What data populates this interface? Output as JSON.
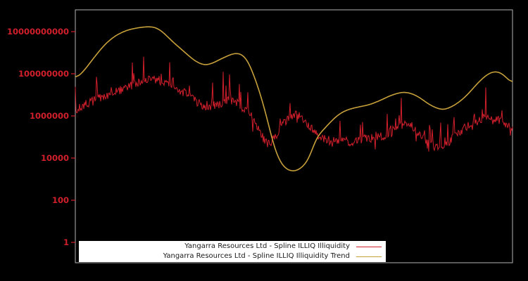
{
  "figure": {
    "background": "#000000",
    "plot_border_color": "#b3b3b3"
  },
  "chart_data": {
    "type": "line",
    "title": "",
    "xlabel": "",
    "ylabel": "",
    "grid": false,
    "x_axis": {
      "tick_labels": []
    },
    "y_axis": {
      "scale": "log",
      "tick_color": "#d11f2c",
      "range_log10": [
        -1,
        11
      ],
      "ticks": [
        {
          "label": "10000000000",
          "value": 10000000000
        },
        {
          "label": "100000000",
          "value": 100000000
        },
        {
          "label": "1000000",
          "value": 1000000
        },
        {
          "label": "10000",
          "value": 10000
        },
        {
          "label": "100",
          "value": 100
        },
        {
          "label": "1",
          "value": 1
        }
      ]
    },
    "legend": {
      "location": "lower-left-inside",
      "background": "#ffffff",
      "text_color": "#1a1a1a"
    },
    "series": [
      {
        "name": "Yangarra Resources Ltd - Spline ILLIQ Illiquidity",
        "color": "#d11f2c",
        "style": "noisy-line",
        "line_width": 1,
        "noise": {
          "seed": 7,
          "jitter": 0.21,
          "spike_prob": 0.1,
          "spike_max": 1.3,
          "dip_prob": 0.05,
          "dip_max": 0.5
        },
        "points_xfrac_log10": [
          [
            0.0,
            6.17
          ],
          [
            0.016,
            6.5
          ],
          [
            0.032,
            6.63
          ],
          [
            0.048,
            6.77
          ],
          [
            0.064,
            6.87
          ],
          [
            0.081,
            7.0
          ],
          [
            0.097,
            7.17
          ],
          [
            0.113,
            7.3
          ],
          [
            0.129,
            7.47
          ],
          [
            0.145,
            7.6
          ],
          [
            0.161,
            7.77
          ],
          [
            0.177,
            7.77
          ],
          [
            0.193,
            7.67
          ],
          [
            0.209,
            7.57
          ],
          [
            0.225,
            7.37
          ],
          [
            0.242,
            7.2
          ],
          [
            0.258,
            6.97
          ],
          [
            0.274,
            6.7
          ],
          [
            0.29,
            6.5
          ],
          [
            0.306,
            6.43
          ],
          [
            0.322,
            6.5
          ],
          [
            0.338,
            6.63
          ],
          [
            0.354,
            6.73
          ],
          [
            0.37,
            6.6
          ],
          [
            0.386,
            6.33
          ],
          [
            0.403,
            5.97
          ],
          [
            0.419,
            5.43
          ],
          [
            0.432,
            4.83
          ],
          [
            0.443,
            4.6
          ],
          [
            0.456,
            4.97
          ],
          [
            0.472,
            5.57
          ],
          [
            0.488,
            5.9
          ],
          [
            0.504,
            6.07
          ],
          [
            0.52,
            5.9
          ],
          [
            0.536,
            5.53
          ],
          [
            0.552,
            5.13
          ],
          [
            0.568,
            4.9
          ],
          [
            0.588,
            4.8
          ],
          [
            0.609,
            4.87
          ],
          [
            0.628,
            4.77
          ],
          [
            0.649,
            4.83
          ],
          [
            0.668,
            4.93
          ],
          [
            0.689,
            5.0
          ],
          [
            0.71,
            5.1
          ],
          [
            0.726,
            5.3
          ],
          [
            0.746,
            5.53
          ],
          [
            0.762,
            5.6
          ],
          [
            0.778,
            5.37
          ],
          [
            0.794,
            4.97
          ],
          [
            0.81,
            4.73
          ],
          [
            0.826,
            4.57
          ],
          [
            0.842,
            4.6
          ],
          [
            0.858,
            4.83
          ],
          [
            0.874,
            5.1
          ],
          [
            0.89,
            5.47
          ],
          [
            0.907,
            5.63
          ],
          [
            0.923,
            5.8
          ],
          [
            0.939,
            5.9
          ],
          [
            0.955,
            5.77
          ],
          [
            0.971,
            5.8
          ],
          [
            0.985,
            5.6
          ],
          [
            1.0,
            5.3
          ]
        ]
      },
      {
        "name": "Yangarra Resources Ltd - Spline ILLIQ Illiquidity Trend",
        "color": "#c6a03a",
        "style": "smooth-line",
        "line_width": 1.6,
        "points_xfrac_log10": [
          [
            0.0,
            7.73
          ],
          [
            0.021,
            8.17
          ],
          [
            0.045,
            8.83
          ],
          [
            0.069,
            9.43
          ],
          [
            0.093,
            9.83
          ],
          [
            0.118,
            10.07
          ],
          [
            0.142,
            10.18
          ],
          [
            0.166,
            10.24
          ],
          [
            0.185,
            10.2
          ],
          [
            0.201,
            9.97
          ],
          [
            0.217,
            9.63
          ],
          [
            0.233,
            9.33
          ],
          [
            0.25,
            9.03
          ],
          [
            0.266,
            8.73
          ],
          [
            0.282,
            8.5
          ],
          [
            0.298,
            8.4
          ],
          [
            0.314,
            8.5
          ],
          [
            0.33,
            8.67
          ],
          [
            0.346,
            8.83
          ],
          [
            0.362,
            8.97
          ],
          [
            0.378,
            8.97
          ],
          [
            0.394,
            8.67
          ],
          [
            0.407,
            8.0
          ],
          [
            0.423,
            7.07
          ],
          [
            0.44,
            5.77
          ],
          [
            0.456,
            4.4
          ],
          [
            0.472,
            3.67
          ],
          [
            0.488,
            3.4
          ],
          [
            0.504,
            3.37
          ],
          [
            0.52,
            3.57
          ],
          [
            0.536,
            4.0
          ],
          [
            0.549,
            4.9
          ],
          [
            0.564,
            5.27
          ],
          [
            0.58,
            5.63
          ],
          [
            0.596,
            5.97
          ],
          [
            0.612,
            6.2
          ],
          [
            0.628,
            6.33
          ],
          [
            0.649,
            6.43
          ],
          [
            0.673,
            6.53
          ],
          [
            0.697,
            6.73
          ],
          [
            0.721,
            6.97
          ],
          [
            0.746,
            7.13
          ],
          [
            0.765,
            7.1
          ],
          [
            0.786,
            6.9
          ],
          [
            0.807,
            6.57
          ],
          [
            0.826,
            6.37
          ],
          [
            0.842,
            6.28
          ],
          [
            0.861,
            6.43
          ],
          [
            0.881,
            6.7
          ],
          [
            0.9,
            7.07
          ],
          [
            0.919,
            7.53
          ],
          [
            0.936,
            7.87
          ],
          [
            0.95,
            8.07
          ],
          [
            0.965,
            8.12
          ],
          [
            0.977,
            8.0
          ],
          [
            0.989,
            7.77
          ],
          [
            1.0,
            7.47
          ]
        ]
      }
    ]
  }
}
